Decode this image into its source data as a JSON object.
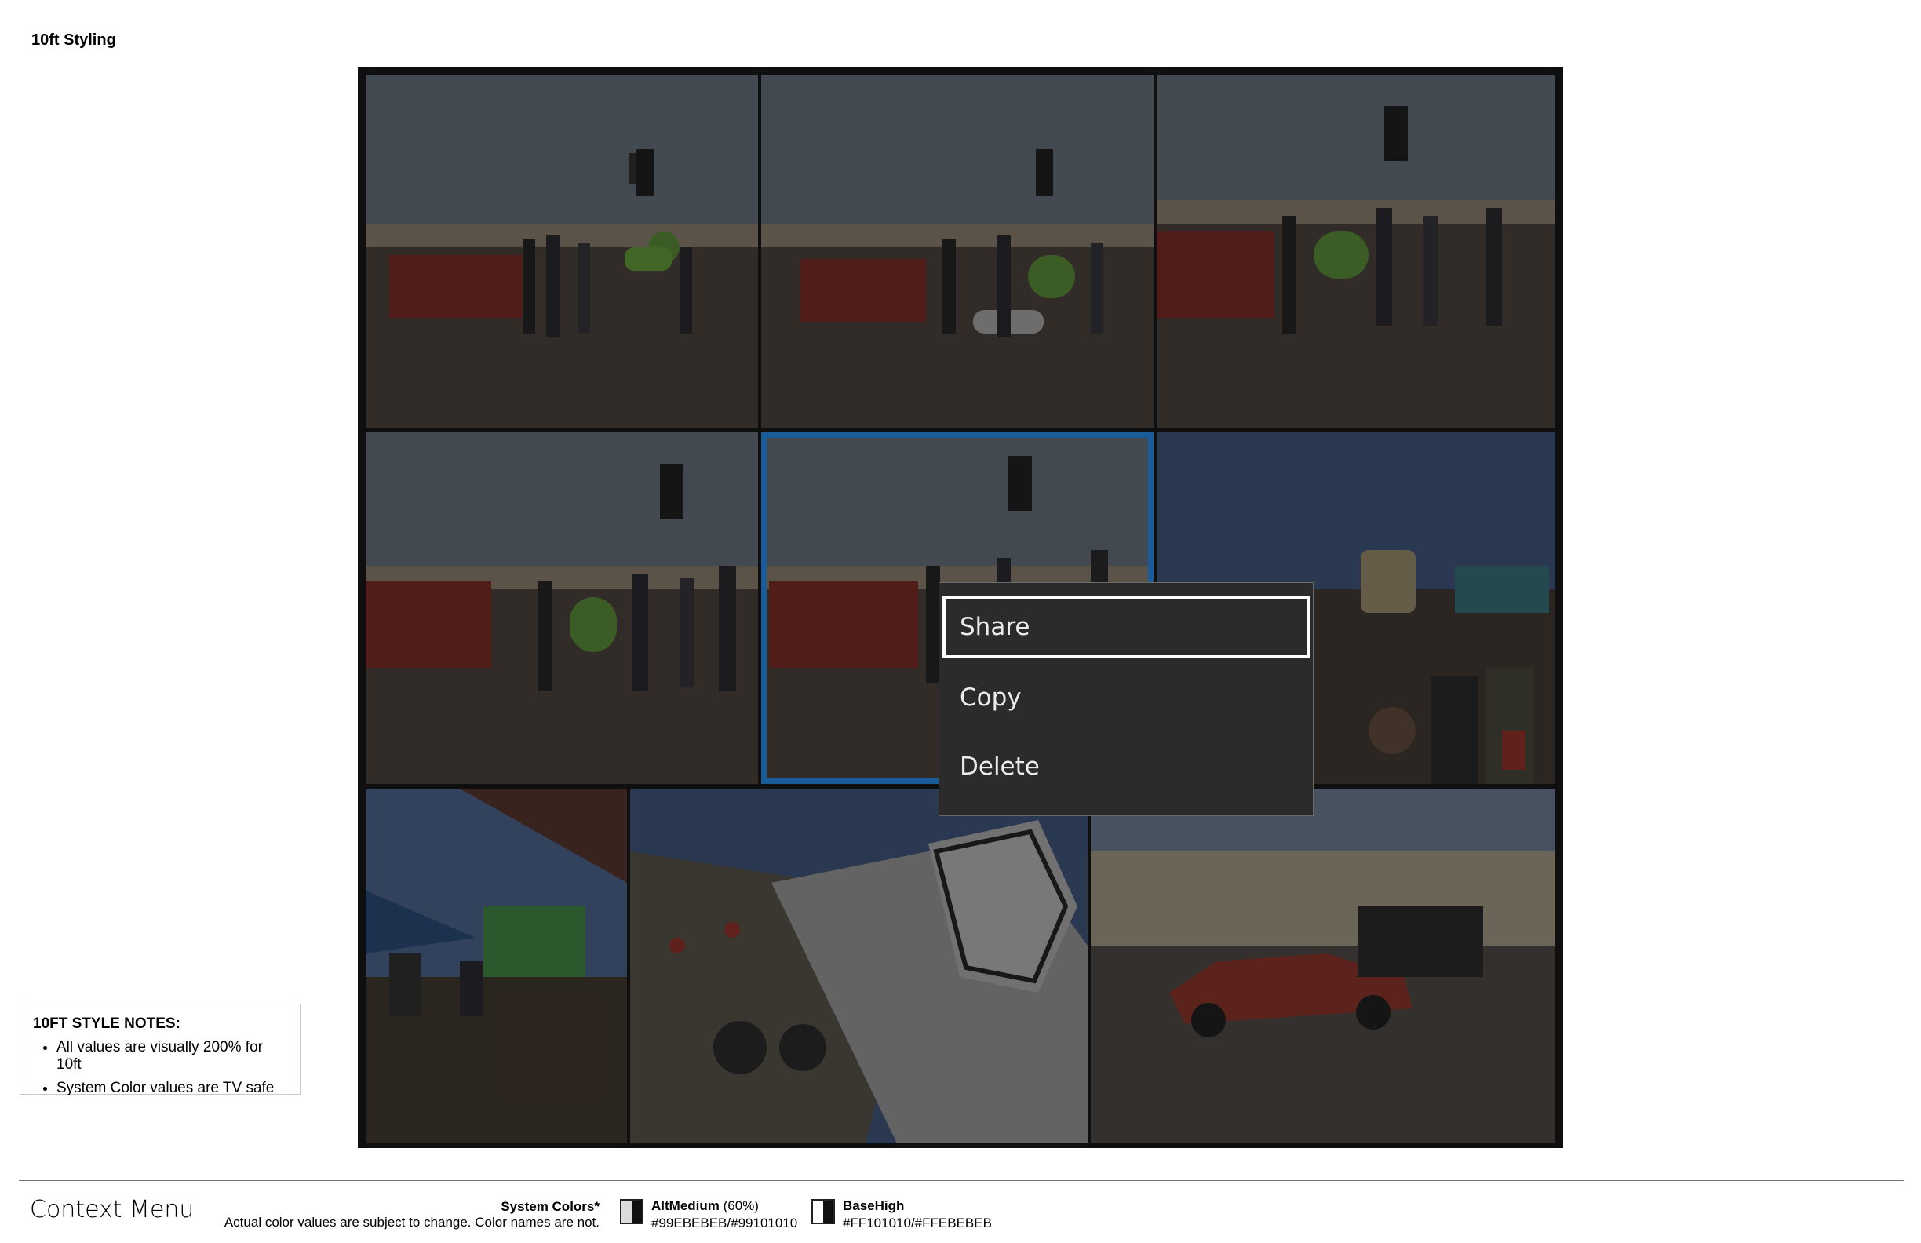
{
  "page_title": "10ft Styling",
  "context_menu": {
    "items": [
      {
        "label": "Share"
      },
      {
        "label": "Copy"
      },
      {
        "label": "Delete"
      }
    ]
  },
  "notes": {
    "heading": "10FT STYLE NOTES:",
    "items": [
      "All values are visually 200% for 10ft",
      "System Color values are TV safe"
    ]
  },
  "footer": {
    "title": "Context Menu",
    "system_colors_label": "System Colors*",
    "system_colors_note": "Actual color values are subject to change. Color names are not.",
    "colors": [
      {
        "name": "AltMedium",
        "suffix": "(60%)",
        "value": "#99EBEBEB/#99101010"
      },
      {
        "name": "BaseHigh",
        "suffix": "",
        "value": "#FF101010/#FFEBEBEB"
      }
    ]
  },
  "colors": {
    "focus_border": "#1A5C9A",
    "menu_background": "#2B2B2B",
    "menu_text": "#EBEBEB",
    "selection_border": "#FFFFFF"
  }
}
